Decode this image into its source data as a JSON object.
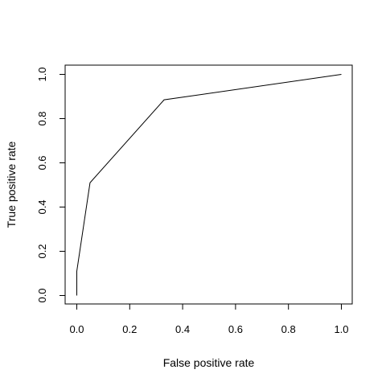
{
  "chart_data": {
    "type": "line",
    "title": "",
    "xlabel": "False positive rate",
    "ylabel": "True positive rate",
    "xlim": [
      0,
      1
    ],
    "ylim": [
      0,
      1
    ],
    "xticks": [
      0.0,
      0.2,
      0.4,
      0.6,
      0.8,
      1.0
    ],
    "yticks": [
      0.0,
      0.2,
      0.4,
      0.6,
      0.8,
      1.0
    ],
    "xtick_labels": [
      "0.0",
      "0.2",
      "0.4",
      "0.6",
      "0.8",
      "1.0"
    ],
    "ytick_labels": [
      "0.0",
      "0.2",
      "0.4",
      "0.6",
      "0.8",
      "1.0"
    ],
    "grid": false,
    "legend": "none",
    "line_color": "#000000",
    "series": [
      {
        "x": [
          0.0,
          0.0,
          0.05,
          0.33,
          1.0
        ],
        "y": [
          0.0,
          0.11,
          0.51,
          0.885,
          1.0
        ]
      }
    ]
  }
}
